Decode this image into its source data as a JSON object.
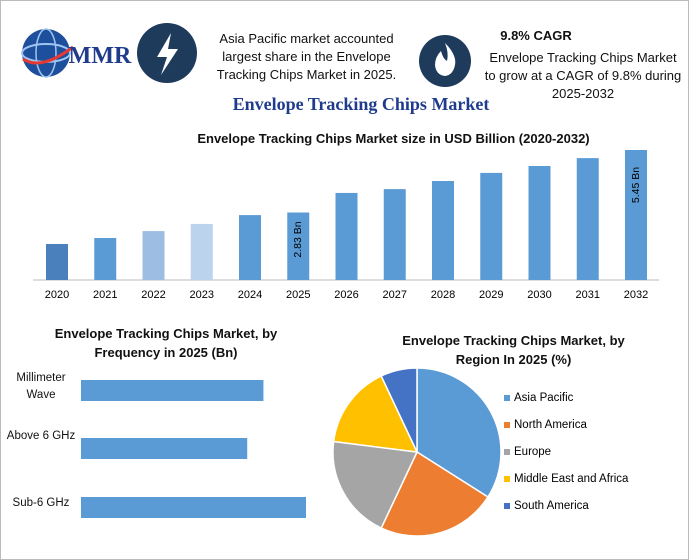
{
  "header": {
    "logo": "MMR",
    "fact1": "Asia Pacific market accounted largest share in the Envelope Tracking Chips Market in 2025.",
    "cagr_title": "9.8% CAGR",
    "fact2": "Envelope Tracking Chips Market to grow at a CAGR of 9.8% during 2025-2032"
  },
  "title": "Envelope Tracking Chips Market",
  "chart_data": [
    {
      "type": "bar",
      "title": "Envelope Tracking Chips Market size in USD Billion (2020-2032)",
      "categories": [
        "2020",
        "2021",
        "2022",
        "2023",
        "2024",
        "2025",
        "2026",
        "2027",
        "2028",
        "2029",
        "2030",
        "2031",
        "2032"
      ],
      "values": [
        1.51,
        1.76,
        2.05,
        2.35,
        2.72,
        2.83,
        3.65,
        3.81,
        4.15,
        4.49,
        4.78,
        5.11,
        5.45
      ],
      "value_labels": [
        null,
        null,
        null,
        null,
        null,
        "2.83 Bn",
        null,
        null,
        null,
        null,
        null,
        null,
        "5.45 Bn"
      ],
      "colors": [
        "#4a80bb",
        "#5b9bd5",
        "#9dbde3",
        "#bcd3ee",
        "#5b9bd5",
        "#5b9bd5",
        "#5b9bd5",
        "#5b9bd5",
        "#5b9bd5",
        "#5b9bd5",
        "#5b9bd5",
        "#5b9bd5",
        "#5b9bd5"
      ]
    },
    {
      "type": "bar",
      "orientation": "horizontal",
      "title": "Envelope Tracking Chips Market, by Frequency in 2025 (Bn)",
      "categories": [
        "Millimeter Wave",
        "Above 6 GHz",
        "Sub-6 GHz"
      ],
      "values": [
        0.9,
        0.82,
        1.11
      ],
      "color": "#5b9bd5"
    },
    {
      "type": "pie",
      "title": "Envelope Tracking Chips Market, by Region In 2025 (%)",
      "categories": [
        "Asia Pacific",
        "North America",
        "Europe",
        "Middle East and Africa",
        "South America"
      ],
      "values": [
        34,
        23,
        20,
        16,
        7
      ],
      "colors": [
        "#5b9bd5",
        "#ed7d31",
        "#a5a5a5",
        "#ffc000",
        "#4472c4"
      ]
    }
  ]
}
